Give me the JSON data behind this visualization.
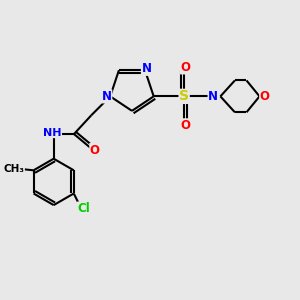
{
  "bg_color": "#e8e8e8",
  "bond_color": "#000000",
  "line_width": 1.5,
  "atom_colors": {
    "N": "#0000ff",
    "O": "#ff0000",
    "S": "#cccc00",
    "Cl": "#00cc00",
    "H": "#888888",
    "C": "#000000"
  },
  "font_size": 8.5,
  "xlim": [
    0,
    10
  ],
  "ylim": [
    0,
    10
  ]
}
